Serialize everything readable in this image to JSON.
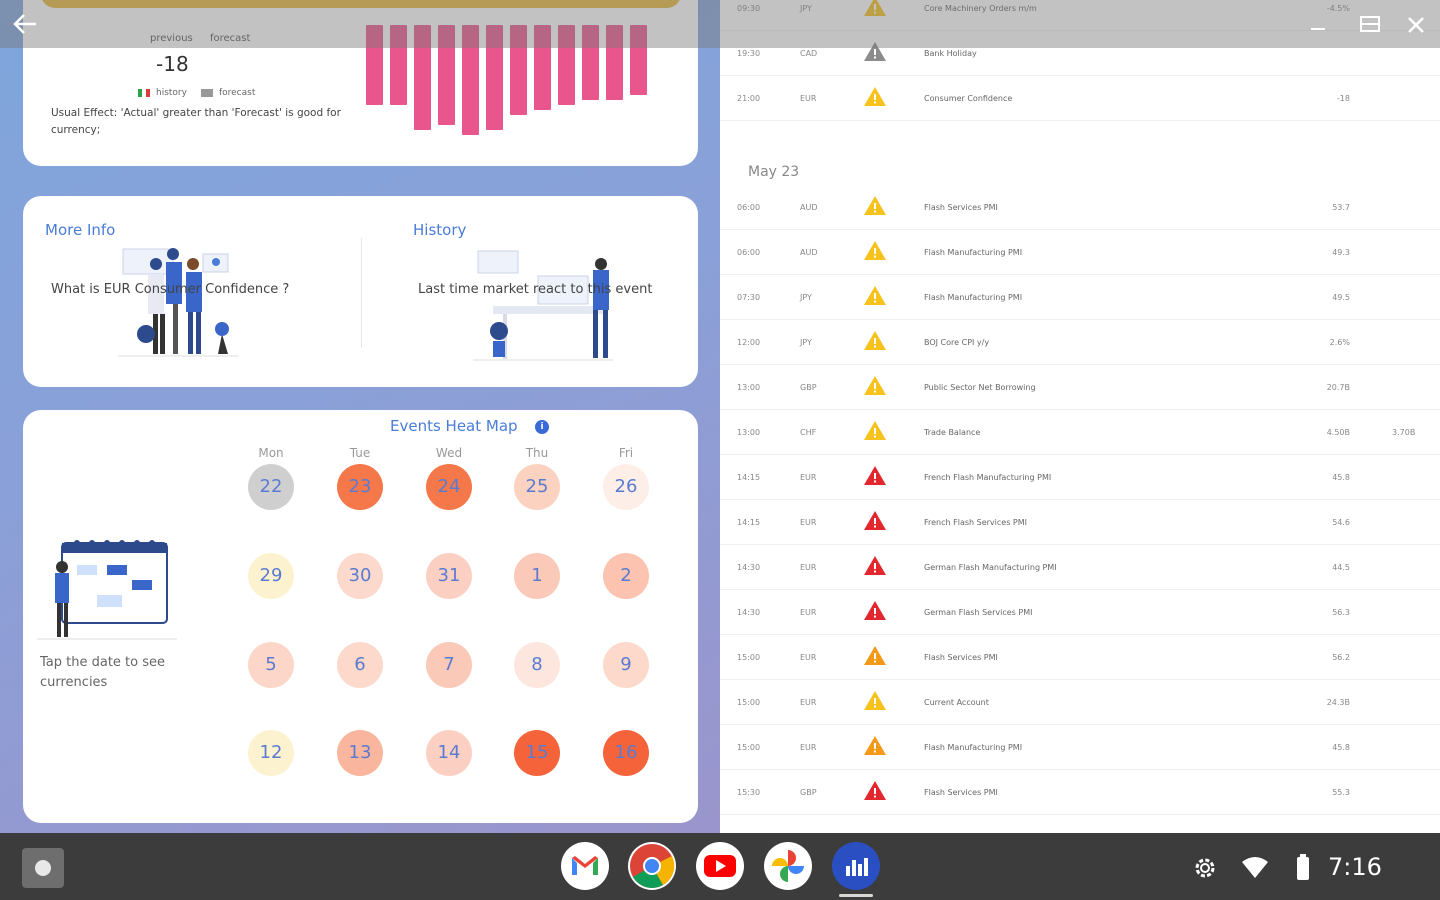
{
  "chart_card": {
    "previous_label": "previous",
    "forecast_label": "forecast",
    "value": "-18",
    "legend_history": "history",
    "legend_forecast": "forecast",
    "usual_effect": "Usual Effect: 'Actual' greater than 'Forecast' is good for currency;"
  },
  "chart_data": {
    "type": "bar",
    "values": [
      -80,
      -80,
      -105,
      -100,
      -110,
      -105,
      -90,
      -85,
      -80,
      -75,
      -75,
      -70
    ],
    "color": "#e9568d"
  },
  "info_card": {
    "more_info_title": "More Info",
    "more_info_text": "What is EUR Consumer Confidence ?",
    "history_title": "History",
    "history_text": "Last time market react to this event"
  },
  "heatmap": {
    "title": "Events Heat Map",
    "info_icon": "i",
    "days_of_week": [
      "Mon",
      "Tue",
      "Wed",
      "Thu",
      "Fri"
    ],
    "weeks": [
      [
        {
          "d": "22",
          "c": "#cfcfcf"
        },
        {
          "d": "23",
          "c": "#f4784a"
        },
        {
          "d": "24",
          "c": "#f4784a"
        },
        {
          "d": "25",
          "c": "#fbd2c0"
        },
        {
          "d": "26",
          "c": "#fdeee8"
        }
      ],
      [
        {
          "d": "29",
          "c": "#fdf2cf"
        },
        {
          "d": "30",
          "c": "#fbd9cc"
        },
        {
          "d": "31",
          "c": "#fbd0c2"
        },
        {
          "d": "1",
          "c": "#fbc9b8"
        },
        {
          "d": "2",
          "c": "#fbc3b0"
        }
      ],
      [
        {
          "d": "5",
          "c": "#fcd6c8"
        },
        {
          "d": "6",
          "c": "#fcd9cb"
        },
        {
          "d": "7",
          "c": "#fbc9b8"
        },
        {
          "d": "8",
          "c": "#fde6dd"
        },
        {
          "d": "9",
          "c": "#fcd9cb"
        }
      ],
      [
        {
          "d": "12",
          "c": "#fdf2cf"
        },
        {
          "d": "13",
          "c": "#f9b59e"
        },
        {
          "d": "14",
          "c": "#fbd0c2"
        },
        {
          "d": "15",
          "c": "#f4633a"
        },
        {
          "d": "16",
          "c": "#f4633a"
        }
      ]
    ],
    "tap_text": "Tap the date to see currencies"
  },
  "events": {
    "top_rows": [
      {
        "time": "09:30",
        "cur": "JPY",
        "level": "yellow",
        "event": "Core Machinery Orders m/m",
        "val": "-4.5%",
        "val2": ""
      },
      {
        "time": "19:30",
        "cur": "CAD",
        "level": "gray",
        "event": "Bank Holiday",
        "val": "",
        "val2": ""
      },
      {
        "time": "21:00",
        "cur": "EUR",
        "level": "yellow",
        "event": "Consumer Confidence",
        "val": "-18",
        "val2": ""
      }
    ],
    "date_header": "May 23",
    "rows": [
      {
        "time": "06:00",
        "cur": "AUD",
        "level": "yellow",
        "event": "Flash Services PMI",
        "val": "53.7",
        "val2": ""
      },
      {
        "time": "06:00",
        "cur": "AUD",
        "level": "yellow",
        "event": "Flash Manufacturing PMI",
        "val": "49.3",
        "val2": ""
      },
      {
        "time": "07:30",
        "cur": "JPY",
        "level": "yellow",
        "event": "Flash Manufacturing PMI",
        "val": "49.5",
        "val2": ""
      },
      {
        "time": "12:00",
        "cur": "JPY",
        "level": "yellow",
        "event": "BOJ Core CPI y/y",
        "val": "2.6%",
        "val2": ""
      },
      {
        "time": "13:00",
        "cur": "GBP",
        "level": "yellow",
        "event": "Public Sector Net Borrowing",
        "val": "20.7B",
        "val2": ""
      },
      {
        "time": "13:00",
        "cur": "CHF",
        "level": "yellow",
        "event": "Trade Balance",
        "val": "4.50B",
        "val2": "3.70B"
      },
      {
        "time": "14:15",
        "cur": "EUR",
        "level": "red",
        "event": "French Flash Manufacturing PMI",
        "val": "45.8",
        "val2": ""
      },
      {
        "time": "14:15",
        "cur": "EUR",
        "level": "red",
        "event": "French Flash Services PMI",
        "val": "54.6",
        "val2": ""
      },
      {
        "time": "14:30",
        "cur": "EUR",
        "level": "red",
        "event": "German Flash Manufacturing PMI",
        "val": "44.5",
        "val2": ""
      },
      {
        "time": "14:30",
        "cur": "EUR",
        "level": "red",
        "event": "German Flash Services PMI",
        "val": "56.3",
        "val2": ""
      },
      {
        "time": "15:00",
        "cur": "EUR",
        "level": "orange",
        "event": "Flash Services PMI",
        "val": "56.2",
        "val2": ""
      },
      {
        "time": "15:00",
        "cur": "EUR",
        "level": "yellow",
        "event": "Current Account",
        "val": "24.3B",
        "val2": ""
      },
      {
        "time": "15:00",
        "cur": "EUR",
        "level": "orange",
        "event": "Flash Manufacturing PMI",
        "val": "45.8",
        "val2": ""
      },
      {
        "time": "15:30",
        "cur": "GBP",
        "level": "red",
        "event": "Flash Services PMI",
        "val": "55.3",
        "val2": ""
      }
    ]
  },
  "impact_colors": {
    "yellow": "#f6c21b",
    "orange": "#f49a18",
    "red": "#e2282e",
    "gray": "#8c8c8c"
  },
  "shelf": {
    "apps": [
      "gmail-icon",
      "chrome-icon",
      "youtube-icon",
      "photos-icon",
      "forex-app-icon"
    ],
    "time": "7:16"
  }
}
